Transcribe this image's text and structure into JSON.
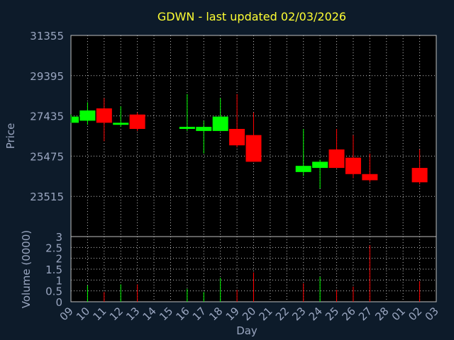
{
  "chart_data": {
    "type": "candlestick",
    "title": "GDWN - last updated 02/03/2026",
    "xlabel": "Day",
    "ylabel_price": "Price",
    "ylabel_volume": "Volume (0000)",
    "price_ylim": [
      21555,
      31355
    ],
    "price_ticks": [
      "31355",
      "29395",
      "27435",
      "25475",
      "23515"
    ],
    "price_tick_values": [
      31355,
      29395,
      27435,
      25475,
      23515
    ],
    "volume_ylim": [
      0,
      3
    ],
    "volume_ticks": [
      "3",
      "2.5",
      "2",
      "1.5",
      "1",
      "0.5",
      "0"
    ],
    "volume_tick_values": [
      3,
      2.5,
      2,
      1.5,
      1,
      0.5,
      0
    ],
    "x_ticks": [
      "09",
      "10",
      "11",
      "12",
      "13",
      "14",
      "15",
      "16",
      "17",
      "18",
      "19",
      "20",
      "21",
      "22",
      "23",
      "24",
      "25",
      "26",
      "27",
      "28",
      "01",
      "02",
      "03"
    ],
    "grid": true,
    "colors": {
      "up": "#00ff00",
      "down": "#ff0000",
      "background": "#0d1b2a",
      "plot": "#000000",
      "grid": "#c0c0c0",
      "title": "#ffff33",
      "text": "#9aa6c0"
    },
    "candles": [
      {
        "day": "09",
        "open": 27100,
        "high": 27500,
        "low": 27100,
        "close": 27400
      },
      {
        "day": "10",
        "open": 27200,
        "high": 28100,
        "low": 27000,
        "close": 27700
      },
      {
        "day": "11",
        "open": 27800,
        "high": 28300,
        "low": 26200,
        "close": 27100
      },
      {
        "day": "12",
        "open": 27000,
        "high": 27900,
        "low": 26900,
        "close": 27100
      },
      {
        "day": "13",
        "open": 27500,
        "high": 27600,
        "low": 26700,
        "close": 26800
      },
      {
        "day": "16",
        "open": 26800,
        "high": 28500,
        "low": 26700,
        "close": 26900
      },
      {
        "day": "17",
        "open": 26700,
        "high": 27200,
        "low": 25600,
        "close": 26900
      },
      {
        "day": "18",
        "open": 26700,
        "high": 28300,
        "low": 26700,
        "close": 27400
      },
      {
        "day": "19",
        "open": 26800,
        "high": 28500,
        "low": 25900,
        "close": 26000
      },
      {
        "day": "20",
        "open": 26500,
        "high": 27600,
        "low": 25200,
        "close": 25200
      },
      {
        "day": "23",
        "open": 24700,
        "high": 26800,
        "low": 24500,
        "close": 25000
      },
      {
        "day": "24",
        "open": 24900,
        "high": 25300,
        "low": 23900,
        "close": 25200
      },
      {
        "day": "25",
        "open": 25800,
        "high": 26800,
        "low": 24900,
        "close": 24900
      },
      {
        "day": "26",
        "open": 25400,
        "high": 26500,
        "low": 24400,
        "close": 24600
      },
      {
        "day": "27",
        "open": 24600,
        "high": 25600,
        "low": 24200,
        "close": 24300
      },
      {
        "day": "02",
        "open": 24900,
        "high": 25800,
        "low": 24100,
        "close": 24200
      }
    ],
    "volume": [
      {
        "day": "10",
        "value": 0.75,
        "dir": "up"
      },
      {
        "day": "11",
        "value": 0.45,
        "dir": "down"
      },
      {
        "day": "12",
        "value": 0.8,
        "dir": "up"
      },
      {
        "day": "13",
        "value": 0.8,
        "dir": "down"
      },
      {
        "day": "16",
        "value": 0.6,
        "dir": "up"
      },
      {
        "day": "17",
        "value": 0.45,
        "dir": "up"
      },
      {
        "day": "18",
        "value": 1.1,
        "dir": "up"
      },
      {
        "day": "19",
        "value": 0.55,
        "dir": "down"
      },
      {
        "day": "20",
        "value": 1.35,
        "dir": "down"
      },
      {
        "day": "23",
        "value": 0.85,
        "dir": "down"
      },
      {
        "day": "24",
        "value": 1.15,
        "dir": "up"
      },
      {
        "day": "25",
        "value": 0.55,
        "dir": "down"
      },
      {
        "day": "26",
        "value": 0.7,
        "dir": "down"
      },
      {
        "day": "27",
        "value": 2.6,
        "dir": "down"
      },
      {
        "day": "02",
        "value": 0.95,
        "dir": "down"
      }
    ]
  }
}
